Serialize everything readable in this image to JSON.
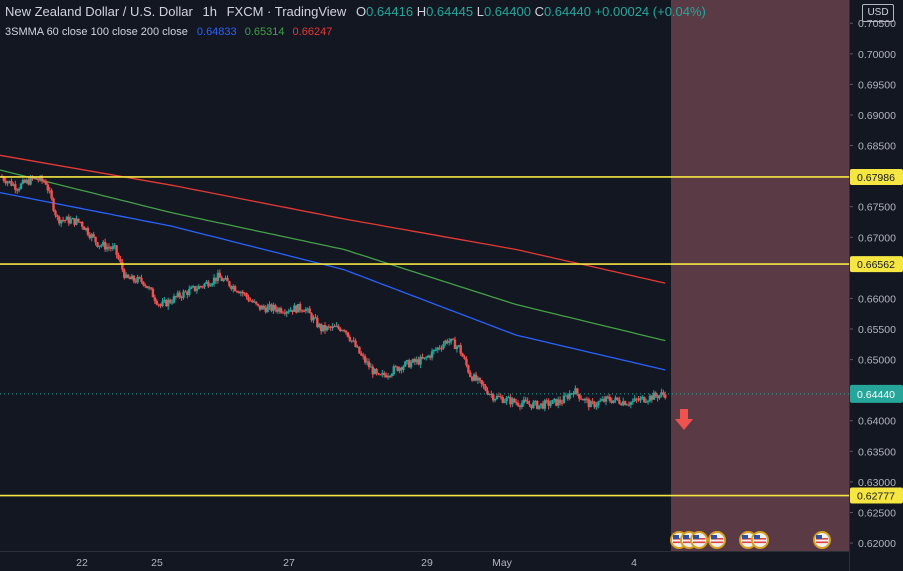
{
  "legend": {
    "symbol": "New Zealand Dollar / U.S. Dollar",
    "interval": "1h",
    "exchange": "FXCM",
    "source": "TradingView",
    "open_label": "O",
    "open": "0.64416",
    "high_label": "H",
    "high": "0.64445",
    "low_label": "L",
    "low": "0.64400",
    "close_label": "C",
    "close": "0.64440",
    "change": "+0.00024 (+0.04%)",
    "indicator_name": "3SMMA 60 close 100 close 200 close",
    "ma60": "0.64833",
    "ma100": "0.65314",
    "ma200": "0.66247"
  },
  "currency": "USD",
  "colors": {
    "background": "#131722",
    "up": "#26a69a",
    "down": "#ef5350",
    "ma60": "#2962ff",
    "ma100": "#43a047",
    "ma200": "#e53935",
    "level": "#f5e642",
    "zone": "#5a3a44"
  },
  "chart_data": {
    "type": "candlestick",
    "y_axis_ticks": [
      "0.70500",
      "0.70000",
      "0.69500",
      "0.69000",
      "0.68500",
      "0.68000",
      "0.67500",
      "0.67000",
      "0.66500",
      "0.66000",
      "0.65500",
      "0.65000",
      "0.64500",
      "0.64000",
      "0.63500",
      "0.63000",
      "0.62500",
      "0.62000"
    ],
    "ylim": [
      0.6187,
      0.7088
    ],
    "x_axis_ticks": [
      "22",
      "25",
      "27",
      "29",
      "May",
      "4"
    ],
    "horizontal_levels": [
      {
        "price": 0.67986,
        "label": "0.67986"
      },
      {
        "price": 0.66562,
        "label": "0.66562"
      },
      {
        "price": 0.62777,
        "label": "0.62777"
      }
    ],
    "last_price": {
      "price": 0.6444,
      "label": "0.64440"
    },
    "price_path": [
      {
        "t": 0,
        "p": 0.68
      },
      {
        "t": 3,
        "p": 0.6782
      },
      {
        "t": 6,
        "p": 0.6797
      },
      {
        "t": 8,
        "p": 0.679
      },
      {
        "t": 10,
        "p": 0.673
      },
      {
        "t": 14,
        "p": 0.6725
      },
      {
        "t": 17,
        "p": 0.669
      },
      {
        "t": 20,
        "p": 0.668
      },
      {
        "t": 22,
        "p": 0.6632
      },
      {
        "t": 25,
        "p": 0.6628
      },
      {
        "t": 28,
        "p": 0.6588
      },
      {
        "t": 32,
        "p": 0.6608
      },
      {
        "t": 35,
        "p": 0.662
      },
      {
        "t": 38,
        "p": 0.6635
      },
      {
        "t": 42,
        "p": 0.6612
      },
      {
        "t": 45,
        "p": 0.6585
      },
      {
        "t": 50,
        "p": 0.6582
      },
      {
        "t": 53,
        "p": 0.6585
      },
      {
        "t": 56,
        "p": 0.655
      },
      {
        "t": 60,
        "p": 0.6552
      },
      {
        "t": 63,
        "p": 0.6505
      },
      {
        "t": 66,
        "p": 0.647
      },
      {
        "t": 70,
        "p": 0.649
      },
      {
        "t": 74,
        "p": 0.65
      },
      {
        "t": 78,
        "p": 0.6532
      },
      {
        "t": 80,
        "p": 0.652
      },
      {
        "t": 82,
        "p": 0.6475
      },
      {
        "t": 86,
        "p": 0.644
      },
      {
        "t": 90,
        "p": 0.643
      },
      {
        "t": 94,
        "p": 0.6425
      },
      {
        "t": 98,
        "p": 0.6432
      },
      {
        "t": 100,
        "p": 0.645
      },
      {
        "t": 103,
        "p": 0.6425
      },
      {
        "t": 106,
        "p": 0.6435
      },
      {
        "t": 110,
        "p": 0.643
      },
      {
        "t": 113,
        "p": 0.6438
      },
      {
        "t": 116,
        "p": 0.6444
      }
    ],
    "ma_series": [
      {
        "name": "ma200",
        "points": [
          {
            "t": 0,
            "p": 0.6834
          },
          {
            "t": 30,
            "p": 0.6785
          },
          {
            "t": 60,
            "p": 0.673
          },
          {
            "t": 90,
            "p": 0.668
          },
          {
            "t": 116,
            "p": 0.6625
          }
        ]
      },
      {
        "name": "ma100",
        "points": [
          {
            "t": 0,
            "p": 0.681
          },
          {
            "t": 30,
            "p": 0.674
          },
          {
            "t": 60,
            "p": 0.668
          },
          {
            "t": 90,
            "p": 0.659
          },
          {
            "t": 116,
            "p": 0.6531
          }
        ]
      },
      {
        "name": "ma60",
        "points": [
          {
            "t": 0,
            "p": 0.6773
          },
          {
            "t": 30,
            "p": 0.6718
          },
          {
            "t": 60,
            "p": 0.6647
          },
          {
            "t": 90,
            "p": 0.654
          },
          {
            "t": 116,
            "p": 0.6483
          }
        ]
      }
    ],
    "future_zone": {
      "from_t": 117
    }
  },
  "events": [
    {
      "kind": "flag-icon"
    },
    {
      "kind": "flag-icon"
    },
    {
      "kind": "flag-icon"
    },
    {
      "kind": "flag-icon"
    },
    {
      "kind": "flag-icon"
    },
    {
      "kind": "flag-icon"
    },
    {
      "kind": "flag-icon"
    }
  ]
}
